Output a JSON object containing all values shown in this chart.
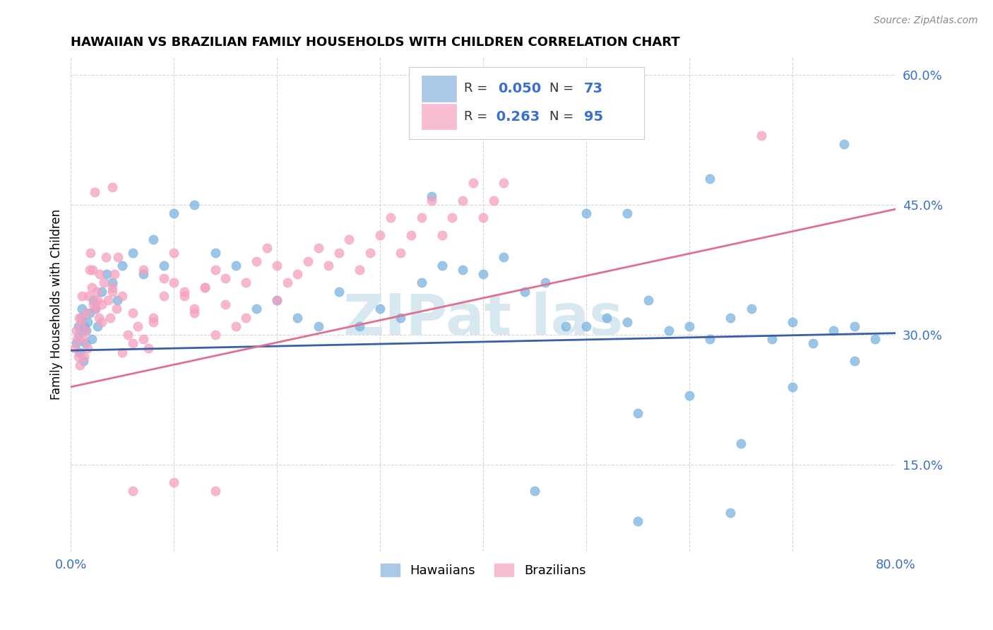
{
  "title": "HAWAIIAN VS BRAZILIAN FAMILY HOUSEHOLDS WITH CHILDREN CORRELATION CHART",
  "source": "Source: ZipAtlas.com",
  "ylabel": "Family Households with Children",
  "xlim": [
    0.0,
    0.8
  ],
  "ylim": [
    0.05,
    0.62
  ],
  "yticks": [
    0.15,
    0.3,
    0.45,
    0.6
  ],
  "ytick_labels": [
    "15.0%",
    "30.0%",
    "45.0%",
    "60.0%"
  ],
  "xticks": [
    0.0,
    0.1,
    0.2,
    0.3,
    0.4,
    0.5,
    0.6,
    0.7,
    0.8
  ],
  "xtick_labels": [
    "0.0%",
    "",
    "",
    "",
    "",
    "",
    "",
    "",
    "80.0%"
  ],
  "blue_scatter_color": "#7ab3e0",
  "pink_scatter_color": "#f5a0c0",
  "blue_line_color": "#3a5fa8",
  "pink_line_color": "#e07090",
  "blue_legend_color": "#aac8e8",
  "pink_legend_color": "#f8bdd0",
  "watermark_color": "#d8e8f0",
  "watermark_text": "ZIPat las",
  "legend_text_color": "#3a70c8",
  "hawaiians_x": [
    0.005,
    0.007,
    0.008,
    0.009,
    0.01,
    0.011,
    0.012,
    0.013,
    0.014,
    0.015,
    0.016,
    0.018,
    0.02,
    0.022,
    0.024,
    0.026,
    0.03,
    0.035,
    0.04,
    0.045,
    0.05,
    0.06,
    0.07,
    0.08,
    0.09,
    0.1,
    0.12,
    0.14,
    0.16,
    0.18,
    0.2,
    0.22,
    0.24,
    0.26,
    0.28,
    0.3,
    0.32,
    0.34,
    0.36,
    0.38,
    0.4,
    0.42,
    0.44,
    0.46,
    0.48,
    0.5,
    0.52,
    0.54,
    0.56,
    0.58,
    0.6,
    0.62,
    0.64,
    0.66,
    0.68,
    0.7,
    0.72,
    0.74,
    0.76,
    0.78,
    0.35,
    0.5,
    0.54,
    0.62,
    0.75,
    0.45,
    0.55,
    0.6,
    0.65,
    0.7,
    0.76,
    0.55,
    0.64
  ],
  "hawaiians_y": [
    0.29,
    0.31,
    0.3,
    0.28,
    0.32,
    0.33,
    0.27,
    0.31,
    0.29,
    0.305,
    0.315,
    0.325,
    0.295,
    0.34,
    0.33,
    0.31,
    0.35,
    0.37,
    0.36,
    0.34,
    0.38,
    0.395,
    0.37,
    0.41,
    0.38,
    0.44,
    0.45,
    0.395,
    0.38,
    0.33,
    0.34,
    0.32,
    0.31,
    0.35,
    0.31,
    0.33,
    0.32,
    0.36,
    0.38,
    0.375,
    0.37,
    0.39,
    0.35,
    0.36,
    0.31,
    0.31,
    0.32,
    0.315,
    0.34,
    0.305,
    0.31,
    0.295,
    0.32,
    0.33,
    0.295,
    0.315,
    0.29,
    0.305,
    0.31,
    0.295,
    0.46,
    0.44,
    0.44,
    0.48,
    0.52,
    0.12,
    0.21,
    0.23,
    0.175,
    0.24,
    0.27,
    0.085,
    0.095
  ],
  "brazilians_x": [
    0.004,
    0.005,
    0.006,
    0.007,
    0.008,
    0.009,
    0.01,
    0.011,
    0.012,
    0.013,
    0.014,
    0.015,
    0.016,
    0.017,
    0.018,
    0.019,
    0.02,
    0.021,
    0.022,
    0.023,
    0.024,
    0.025,
    0.026,
    0.027,
    0.028,
    0.03,
    0.032,
    0.034,
    0.036,
    0.038,
    0.04,
    0.042,
    0.044,
    0.046,
    0.05,
    0.055,
    0.06,
    0.065,
    0.07,
    0.075,
    0.08,
    0.09,
    0.1,
    0.11,
    0.12,
    0.13,
    0.14,
    0.15,
    0.17,
    0.2,
    0.03,
    0.04,
    0.05,
    0.06,
    0.07,
    0.08,
    0.09,
    0.1,
    0.11,
    0.12,
    0.13,
    0.14,
    0.15,
    0.16,
    0.17,
    0.18,
    0.19,
    0.2,
    0.21,
    0.22,
    0.23,
    0.24,
    0.25,
    0.26,
    0.27,
    0.28,
    0.29,
    0.3,
    0.31,
    0.32,
    0.33,
    0.34,
    0.35,
    0.36,
    0.37,
    0.38,
    0.39,
    0.4,
    0.41,
    0.42,
    0.04,
    0.67,
    0.06,
    0.1,
    0.14
  ],
  "brazilians_y": [
    0.285,
    0.305,
    0.295,
    0.275,
    0.32,
    0.265,
    0.315,
    0.345,
    0.295,
    0.275,
    0.305,
    0.325,
    0.285,
    0.345,
    0.375,
    0.395,
    0.355,
    0.375,
    0.335,
    0.465,
    0.33,
    0.35,
    0.34,
    0.32,
    0.37,
    0.315,
    0.36,
    0.39,
    0.34,
    0.32,
    0.35,
    0.37,
    0.33,
    0.39,
    0.28,
    0.3,
    0.29,
    0.31,
    0.295,
    0.285,
    0.32,
    0.345,
    0.36,
    0.35,
    0.33,
    0.355,
    0.3,
    0.365,
    0.32,
    0.34,
    0.335,
    0.355,
    0.345,
    0.325,
    0.375,
    0.315,
    0.365,
    0.395,
    0.345,
    0.325,
    0.355,
    0.375,
    0.335,
    0.31,
    0.36,
    0.385,
    0.4,
    0.38,
    0.36,
    0.37,
    0.385,
    0.4,
    0.38,
    0.395,
    0.41,
    0.375,
    0.395,
    0.415,
    0.435,
    0.395,
    0.415,
    0.435,
    0.455,
    0.415,
    0.435,
    0.455,
    0.475,
    0.435,
    0.455,
    0.475,
    0.47,
    0.53,
    0.12,
    0.13,
    0.12
  ],
  "blue_line_x": [
    0.0,
    0.8
  ],
  "blue_line_y": [
    0.282,
    0.302
  ],
  "pink_line_x": [
    0.0,
    0.8
  ],
  "pink_line_y": [
    0.24,
    0.445
  ]
}
